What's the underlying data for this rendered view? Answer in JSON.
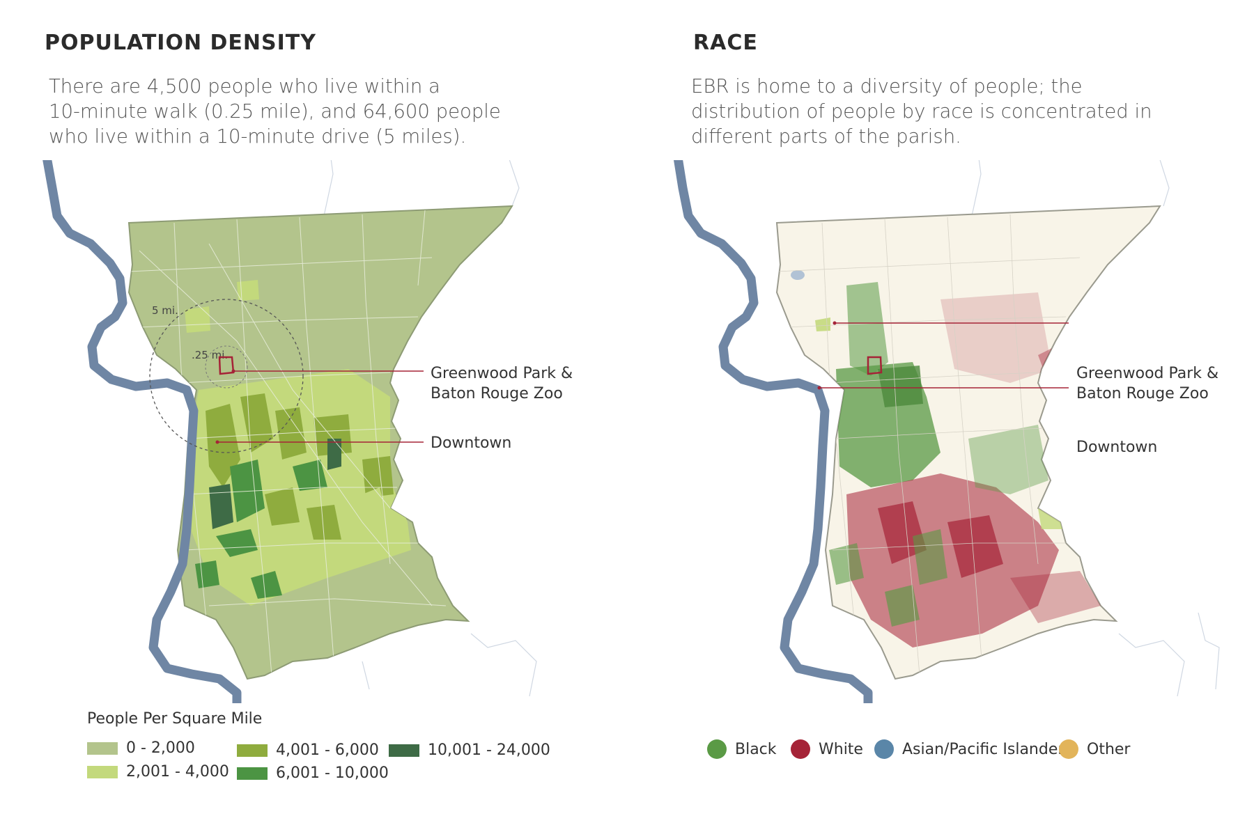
{
  "left": {
    "heading": "POPULATION DENSITY",
    "desc_lines": [
      "There are 4,500 people who live within a",
      "10-minute walk (0.25 mile), and 64,600 people",
      "who live within a 10-minute drive (5 miles)."
    ],
    "ring_outer_label": "5 mi.",
    "ring_inner_label": ".25 mi.",
    "callout_park": [
      "Greenwood Park &",
      "Baton Rouge Zoo"
    ],
    "callout_downtown": "Downtown",
    "legend": {
      "title": "People Per Square Mile",
      "items": [
        {
          "label": "0 - 2,000",
          "color": "#b3c48c"
        },
        {
          "label": "2,001 - 4,000",
          "color": "#c3d97c"
        },
        {
          "label": "4,001 - 6,000",
          "color": "#8fac3e"
        },
        {
          "label": "6,001 - 10,000",
          "color": "#4c9443"
        },
        {
          "label": "10,001 - 24,000",
          "color": "#3e6b46"
        }
      ]
    }
  },
  "right": {
    "heading": "RACE",
    "desc_lines": [
      "EBR is home to a diversity of people; the",
      "distribution of people by race is concentrated in",
      "different parts of the parish."
    ],
    "callout_park": [
      "Greenwood Park &",
      "Baton Rouge Zoo"
    ],
    "callout_downtown": "Downtown",
    "legend": {
      "items": [
        {
          "label": "Black",
          "color": "#5a9a45"
        },
        {
          "label": "White",
          "color": "#a52337"
        },
        {
          "label": "Asian/Pacific Islander",
          "color": "#5a86a8"
        },
        {
          "label": "Other",
          "color": "#e2b45a"
        }
      ]
    }
  },
  "colors": {
    "river": "#6f86a4",
    "parish_fill_density": "#b3c48c",
    "parish_fill_race": "#f8f4e8",
    "marker": "#a52337",
    "callout_line": "#a52337"
  }
}
